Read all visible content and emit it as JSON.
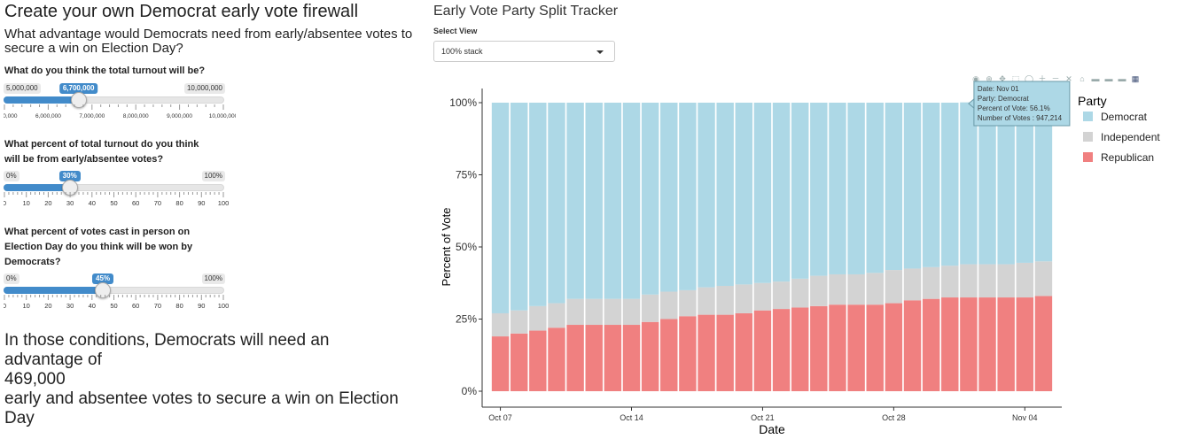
{
  "left": {
    "title": "Create your own Democrat early vote firewall",
    "subtitle": "What advantage would Democrats need from early/absentee votes to secure a win on Election Day?",
    "questions": {
      "turnout": "What do you think the total turnout will be?",
      "early_pct_1": "What percent of total turnout do you think",
      "early_pct_2": "will be from early/absentee votes?",
      "inperson_1": "What percent of votes cast in person on",
      "inperson_2": "Election Day do you think will be won by",
      "inperson_3": "Democrats?"
    },
    "sliders": {
      "turnout": {
        "min_label": "5,000,000",
        "max_label": "10,000,000",
        "value_label": "6,700,000",
        "min": 5000000,
        "max": 10000000,
        "value": 6700000,
        "ticks": [
          "5,000,000",
          "6,000,000",
          "7,000,000",
          "8,000,000",
          "9,000,000",
          "10,000,000"
        ]
      },
      "early": {
        "min_label": "0%",
        "max_label": "100%",
        "value_label": "30%",
        "min": 0,
        "max": 100,
        "value": 30,
        "ticks": [
          "0",
          "10",
          "20",
          "30",
          "40",
          "50",
          "60",
          "70",
          "80",
          "90",
          "100"
        ]
      },
      "inperson": {
        "min_label": "0%",
        "max_label": "100%",
        "value_label": "45%",
        "min": 0,
        "max": 100,
        "value": 45,
        "ticks": [
          "0",
          "10",
          "20",
          "30",
          "40",
          "50",
          "60",
          "70",
          "80",
          "90",
          "100"
        ]
      }
    },
    "result": {
      "line1": "In those conditions, Democrats will need an",
      "line2": "advantage of",
      "line3": "469,000",
      "line4": "early and absentee votes to secure a win on Election",
      "line5": "Day"
    }
  },
  "right": {
    "title": "Early Vote Party Split Tracker",
    "select_label": "Select View",
    "select_value": "100% stack",
    "modebar_icons": [
      "camera-icon",
      "zoom-icon",
      "pan-icon",
      "box-select-icon",
      "lasso-icon",
      "zoom-in-icon",
      "zoom-out-icon",
      "autoscale-icon",
      "home-icon",
      "spike-lines-icon",
      "hover-closest-icon",
      "hover-compare-icon",
      "plotly-logo-icon"
    ],
    "tooltip": {
      "date": "Date: Nov 01",
      "party": "Party: Democrat",
      "pct": "Percent of Vote: 56.1%",
      "votes": "Number of Votes : 947,214"
    }
  },
  "chart_data": {
    "type": "bar",
    "stacked": "percent",
    "xlabel": "Date",
    "ylabel": "Percent of Vote",
    "x_tick_labels": [
      "Oct 07",
      "Oct 14",
      "Oct 21",
      "Oct 28",
      "Nov 04"
    ],
    "y_tick_labels": [
      "0%",
      "25%",
      "50%",
      "75%",
      "100%"
    ],
    "ylim": [
      0,
      1
    ],
    "legend_title": "Party",
    "legend_position": "right",
    "grid": false,
    "categories": [
      "Oct 07",
      "Oct 08",
      "Oct 09",
      "Oct 10",
      "Oct 11",
      "Oct 12",
      "Oct 13",
      "Oct 14",
      "Oct 15",
      "Oct 16",
      "Oct 17",
      "Oct 18",
      "Oct 19",
      "Oct 20",
      "Oct 21",
      "Oct 22",
      "Oct 23",
      "Oct 24",
      "Oct 25",
      "Oct 26",
      "Oct 27",
      "Oct 28",
      "Oct 29",
      "Oct 30",
      "Oct 31",
      "Nov 01",
      "Nov 02",
      "Nov 03",
      "Nov 04",
      "Nov 05"
    ],
    "series": [
      {
        "name": "Republican",
        "color": "#f08080",
        "values": [
          0.19,
          0.2,
          0.21,
          0.22,
          0.23,
          0.23,
          0.23,
          0.23,
          0.24,
          0.25,
          0.26,
          0.265,
          0.265,
          0.27,
          0.28,
          0.285,
          0.29,
          0.295,
          0.3,
          0.3,
          0.3,
          0.305,
          0.315,
          0.32,
          0.325,
          0.325,
          0.325,
          0.325,
          0.325,
          0.33
        ]
      },
      {
        "name": "Independent",
        "color": "#d3d3d3",
        "values": [
          0.08,
          0.08,
          0.085,
          0.085,
          0.09,
          0.09,
          0.09,
          0.09,
          0.095,
          0.095,
          0.09,
          0.095,
          0.1,
          0.1,
          0.095,
          0.095,
          0.1,
          0.105,
          0.105,
          0.105,
          0.11,
          0.115,
          0.11,
          0.11,
          0.11,
          0.115,
          0.115,
          0.115,
          0.12,
          0.12
        ]
      },
      {
        "name": "Democrat",
        "color": "#add8e6",
        "values": [
          0.73,
          0.72,
          0.705,
          0.695,
          0.68,
          0.68,
          0.68,
          0.68,
          0.665,
          0.655,
          0.65,
          0.64,
          0.635,
          0.63,
          0.625,
          0.62,
          0.61,
          0.6,
          0.595,
          0.595,
          0.59,
          0.58,
          0.575,
          0.57,
          0.565,
          0.561,
          0.56,
          0.56,
          0.555,
          0.55
        ]
      }
    ]
  }
}
